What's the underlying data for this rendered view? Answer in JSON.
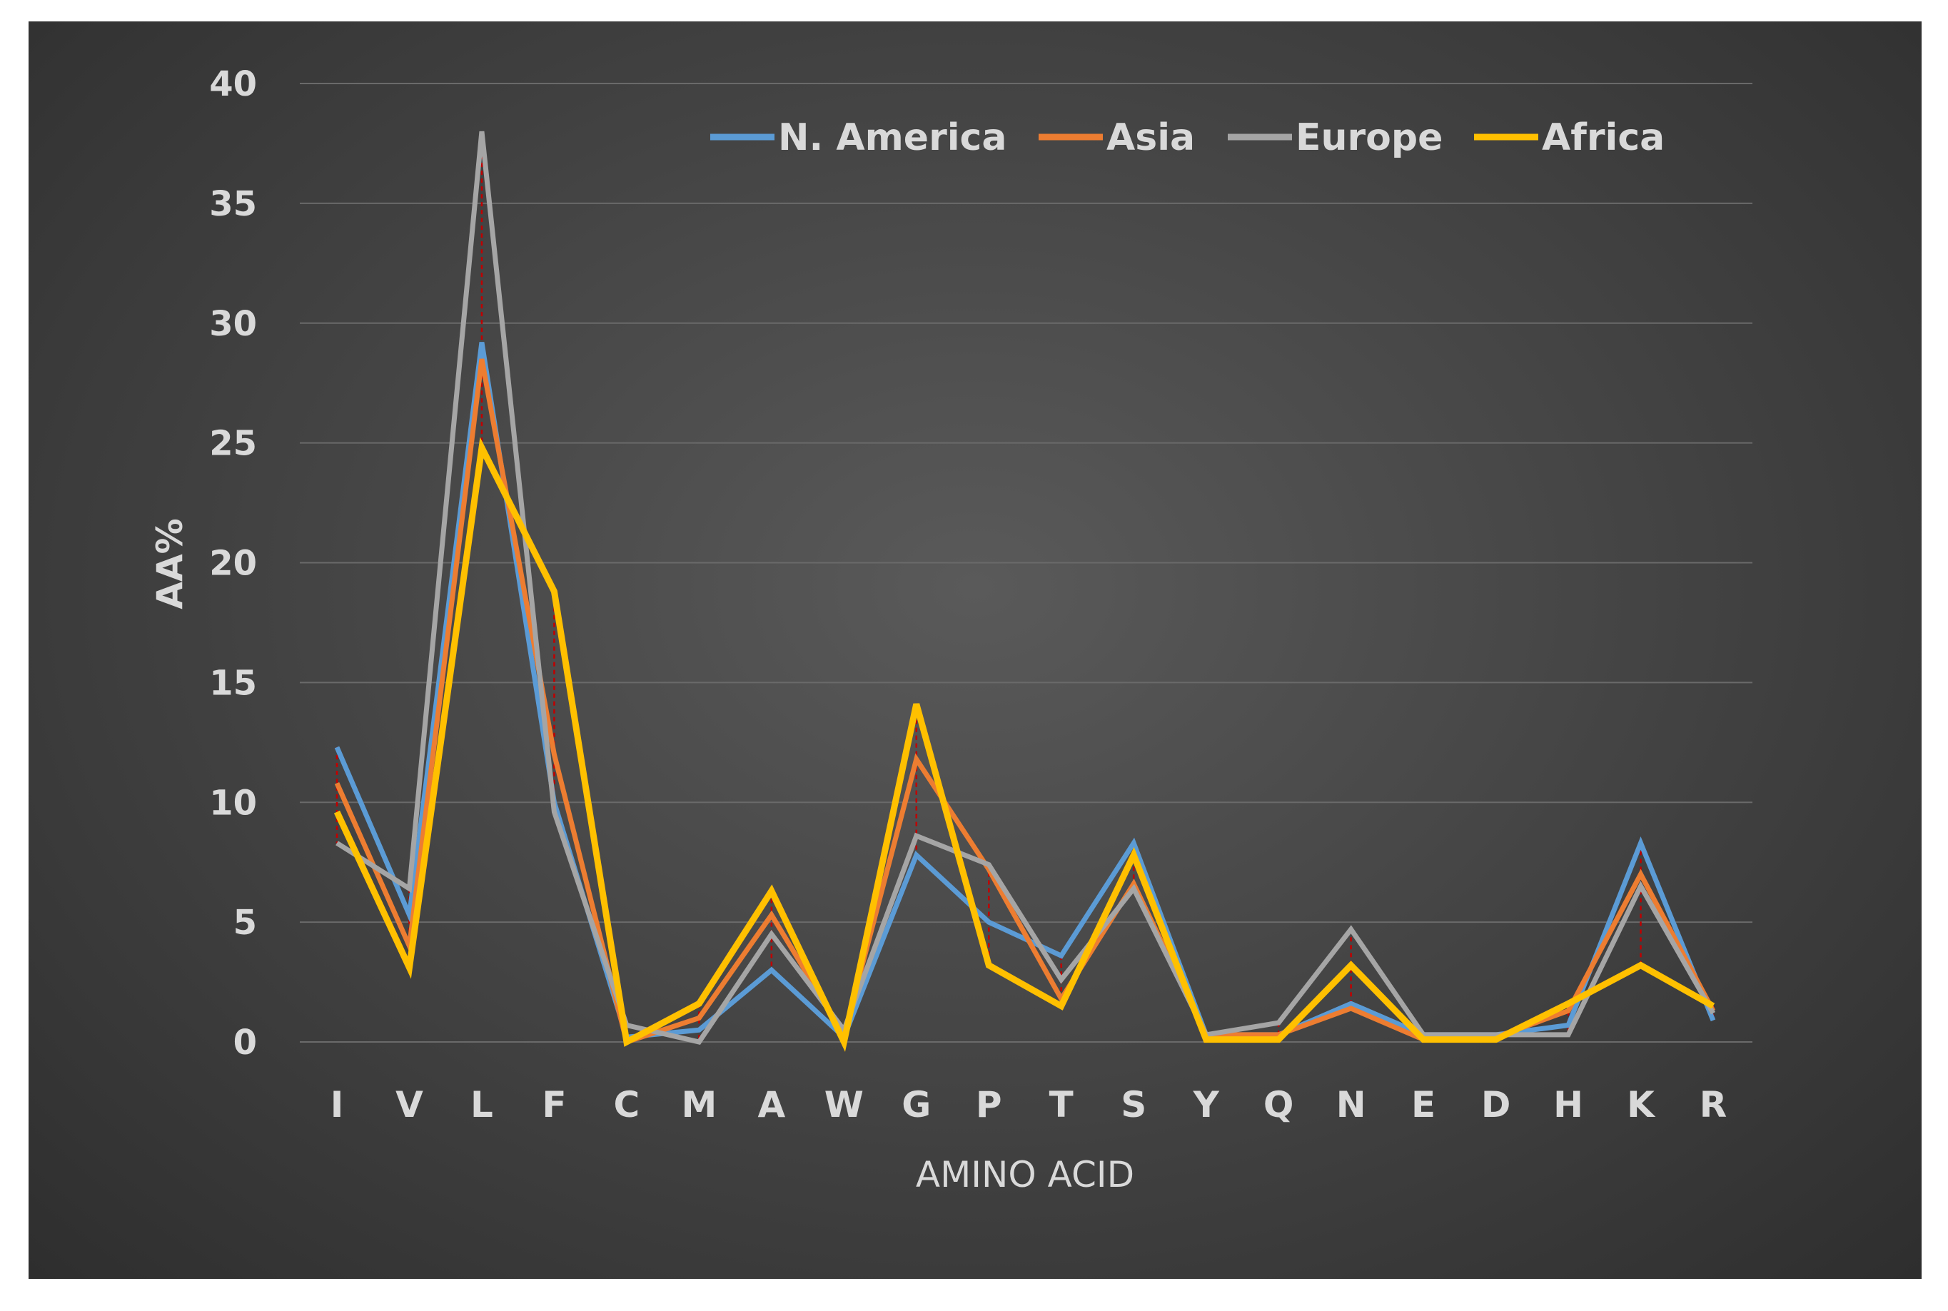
{
  "chart_data": {
    "type": "line",
    "title": "",
    "xlabel": "AMINO ACID",
    "ylabel": "AA%",
    "ylim": [
      0,
      40
    ],
    "yticks": [
      0,
      5,
      10,
      15,
      20,
      25,
      30,
      35,
      40
    ],
    "grid": true,
    "legend_position": "top-right",
    "categories": [
      "I",
      "V",
      "L",
      "F",
      "C",
      "M",
      "A",
      "W",
      "G",
      "P",
      "T",
      "S",
      "Y",
      "Q",
      "N",
      "E",
      "D",
      "H",
      "K",
      "R"
    ],
    "series": [
      {
        "name": "N. America",
        "color": "#5b9bd5",
        "values": [
          12.3,
          5.3,
          29.2,
          10.0,
          0.2,
          0.5,
          3.0,
          0.2,
          7.8,
          5.0,
          3.6,
          8.3,
          0.3,
          0.3,
          1.6,
          0.3,
          0.3,
          0.7,
          8.3,
          0.9
        ]
      },
      {
        "name": "Asia",
        "color": "#ed7d31",
        "values": [
          10.8,
          4.0,
          28.5,
          12.0,
          0.0,
          1.0,
          5.3,
          0.3,
          11.8,
          7.2,
          1.8,
          6.6,
          0.3,
          0.3,
          1.4,
          0.1,
          0.2,
          1.3,
          7.0,
          1.3
        ]
      },
      {
        "name": "Europe",
        "color": "#a5a5a5",
        "values": [
          8.3,
          6.4,
          38.0,
          9.6,
          0.7,
          0.0,
          4.5,
          0.5,
          8.6,
          7.4,
          2.6,
          6.4,
          0.3,
          0.8,
          4.7,
          0.3,
          0.3,
          0.3,
          6.5,
          1.2
        ]
      },
      {
        "name": "Africa",
        "color": "#ffc000",
        "values": [
          9.6,
          3.1,
          24.8,
          18.8,
          0.0,
          1.6,
          6.3,
          0.0,
          14.1,
          3.2,
          1.5,
          7.8,
          0.1,
          0.1,
          3.2,
          0.1,
          0.1,
          1.6,
          3.2,
          1.5
        ]
      }
    ]
  }
}
